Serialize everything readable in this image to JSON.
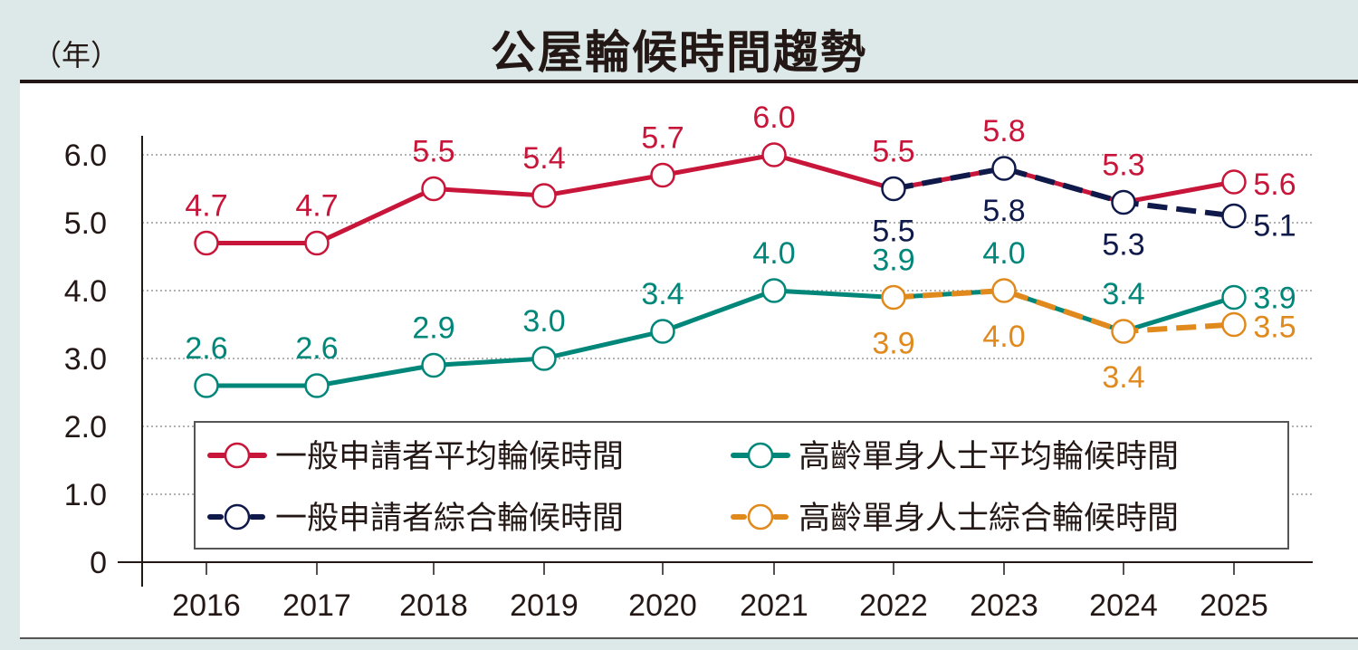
{
  "header": {
    "title": "公屋輪候時間趨勢",
    "unit": "（年）"
  },
  "chart_data": {
    "type": "line",
    "title": "公屋輪候時間趨勢",
    "ylabel": "（年）",
    "xlabel": "",
    "ylim": [
      0,
      6.0
    ],
    "yticks": [
      "0",
      "1.0",
      "2.0",
      "3.0",
      "4.0",
      "5.0",
      "6.0"
    ],
    "categories": [
      "2016",
      "2017",
      "2018",
      "2019",
      "2020",
      "2021",
      "2022",
      "2023",
      "2024",
      "2025"
    ],
    "grid": true,
    "legend_position": "bottom-center",
    "series": [
      {
        "name": "一般申請者平均輪候時間",
        "color": "#c8163a",
        "style": "solid",
        "values": [
          4.7,
          4.7,
          5.5,
          5.4,
          5.7,
          6.0,
          5.5,
          5.8,
          5.3,
          5.6
        ],
        "labels": [
          "4.7",
          "4.7",
          "5.5",
          "5.4",
          "5.7",
          "6.0",
          "5.5",
          "5.8",
          "5.3",
          "5.6"
        ]
      },
      {
        "name": "高齡單身人士平均輪候時間",
        "color": "#00877a",
        "style": "solid",
        "values": [
          2.6,
          2.6,
          2.9,
          3.0,
          3.4,
          4.0,
          3.9,
          4.0,
          3.4,
          3.9
        ],
        "labels": [
          "2.6",
          "2.6",
          "2.9",
          "3.0",
          "3.4",
          "4.0",
          "3.9",
          "4.0",
          "3.4",
          "3.9"
        ]
      },
      {
        "name": "一般申請者綜合輪候時間",
        "color": "#0f1a4a",
        "style": "dashed",
        "values": [
          null,
          null,
          null,
          null,
          null,
          null,
          5.5,
          5.8,
          5.3,
          5.1
        ],
        "labels": [
          null,
          null,
          null,
          null,
          null,
          null,
          "5.5",
          "5.8",
          "5.3",
          "5.1"
        ]
      },
      {
        "name": "高齡單身人士綜合輪候時間",
        "color": "#e08a1e",
        "style": "dashed",
        "values": [
          null,
          null,
          null,
          null,
          null,
          null,
          3.9,
          4.0,
          3.4,
          3.5
        ],
        "labels": [
          null,
          null,
          null,
          null,
          null,
          null,
          "3.9",
          "4.0",
          "3.4",
          "3.5"
        ]
      }
    ]
  }
}
